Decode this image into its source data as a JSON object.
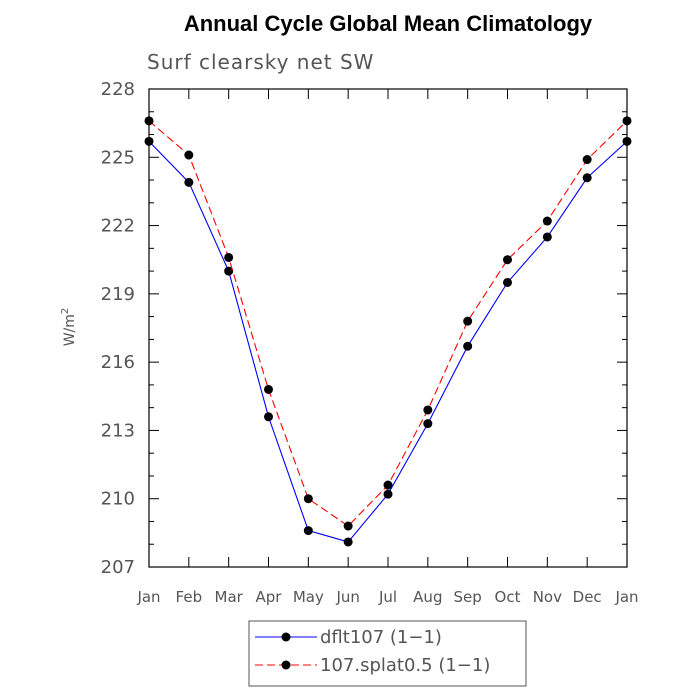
{
  "chart_data": {
    "type": "line",
    "title": "Annual Cycle Global Mean Climatology",
    "subtitle": "Surf clearsky net SW",
    "ylabel_base": "W/m",
    "ylabel_sup": "2",
    "categories": [
      "Jan",
      "Feb",
      "Mar",
      "Apr",
      "May",
      "Jun",
      "Jul",
      "Aug",
      "Sep",
      "Oct",
      "Nov",
      "Dec",
      "Jan"
    ],
    "ylim": [
      207,
      228
    ],
    "yticks": [
      207,
      210,
      213,
      216,
      219,
      222,
      225,
      228
    ],
    "grid": false,
    "legend_position": "bottom",
    "series": [
      {
        "name": "dflt107 (1−1)",
        "color": "#0000ff",
        "dash": "solid",
        "values": [
          225.7,
          223.9,
          220.0,
          213.6,
          208.6,
          208.1,
          210.2,
          213.3,
          216.7,
          219.5,
          221.5,
          224.1,
          225.7
        ]
      },
      {
        "name": "107.splat0.5 (1−1)",
        "color": "#ff0000",
        "dash": "dashed",
        "values": [
          226.6,
          225.1,
          220.6,
          214.8,
          210.0,
          208.8,
          210.6,
          213.9,
          217.8,
          220.5,
          222.2,
          224.9,
          226.6
        ]
      }
    ]
  }
}
